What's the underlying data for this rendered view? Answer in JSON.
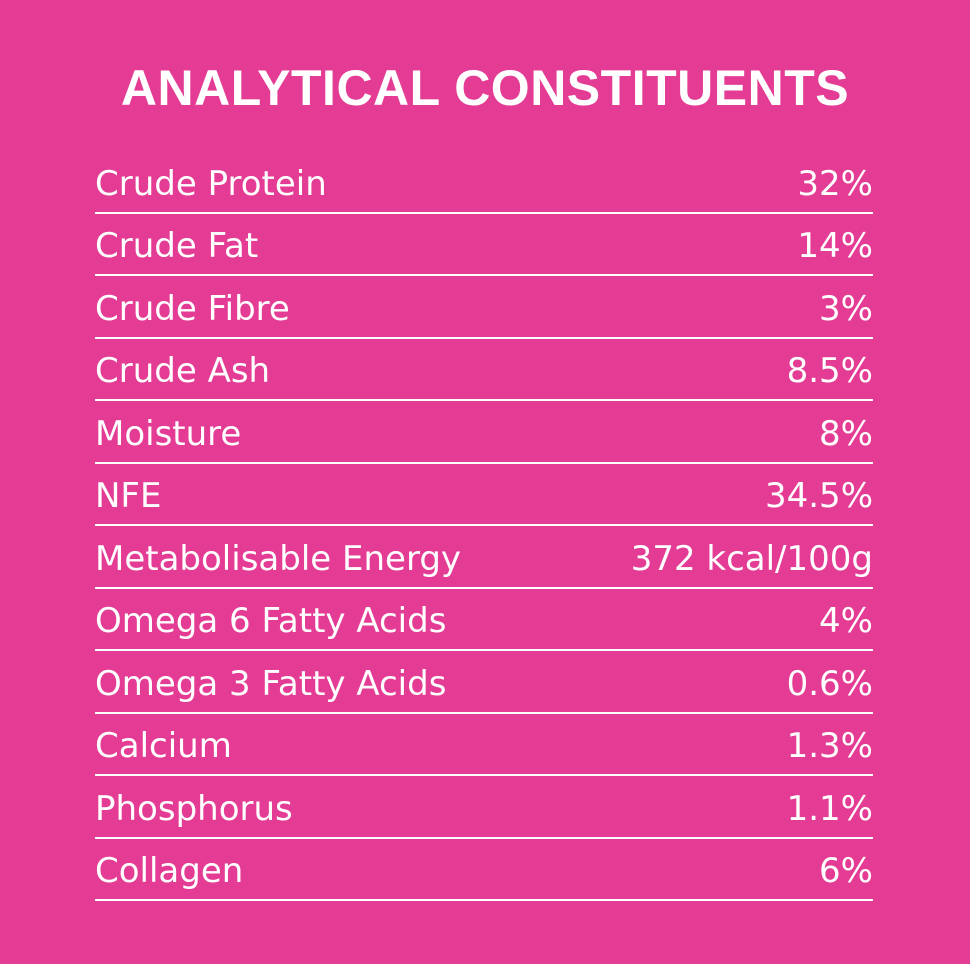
{
  "header": {
    "title": "ANALYTICAL CONSTITUENTS"
  },
  "table": {
    "rows": [
      [
        "Crude Protein",
        "32%"
      ],
      [
        "Crude Fat",
        "14%"
      ],
      [
        "Crude Fibre",
        "3%"
      ],
      [
        "Crude Ash",
        "8.5%"
      ],
      [
        "Moisture",
        "8%"
      ],
      [
        "NFE",
        "34.5%"
      ],
      [
        "Metabolisable Energy",
        "372 kcal/100g"
      ],
      [
        "Omega 6 Fatty Acids",
        "4%"
      ],
      [
        "Omega 3 Fatty Acids",
        "0.6%"
      ],
      [
        "Calcium",
        "1.3%"
      ],
      [
        "Phosphorus",
        "1.1%"
      ],
      [
        "Collagen",
        "6%"
      ]
    ]
  }
}
